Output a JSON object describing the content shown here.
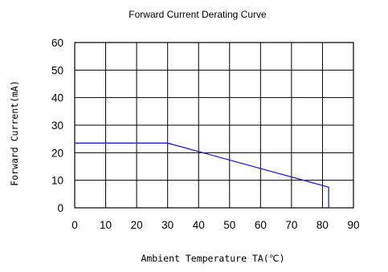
{
  "chart_data": {
    "type": "line",
    "title": "Forward Current Derating Curve",
    "xlabel": "Ambient Temperature TA(℃)",
    "ylabel": "Forward Current(mA)",
    "xlim": [
      0,
      90
    ],
    "ylim": [
      0,
      60
    ],
    "x_ticks": [
      0,
      10,
      20,
      30,
      40,
      50,
      60,
      70,
      80,
      90
    ],
    "y_ticks": [
      0,
      10,
      20,
      30,
      40,
      50,
      60
    ],
    "grid": true,
    "legend": "none",
    "series": [
      {
        "color": "#1f1fd6",
        "x": [
          0,
          30,
          82,
          82
        ],
        "y": [
          23.5,
          23.5,
          7.5,
          0
        ]
      }
    ]
  }
}
